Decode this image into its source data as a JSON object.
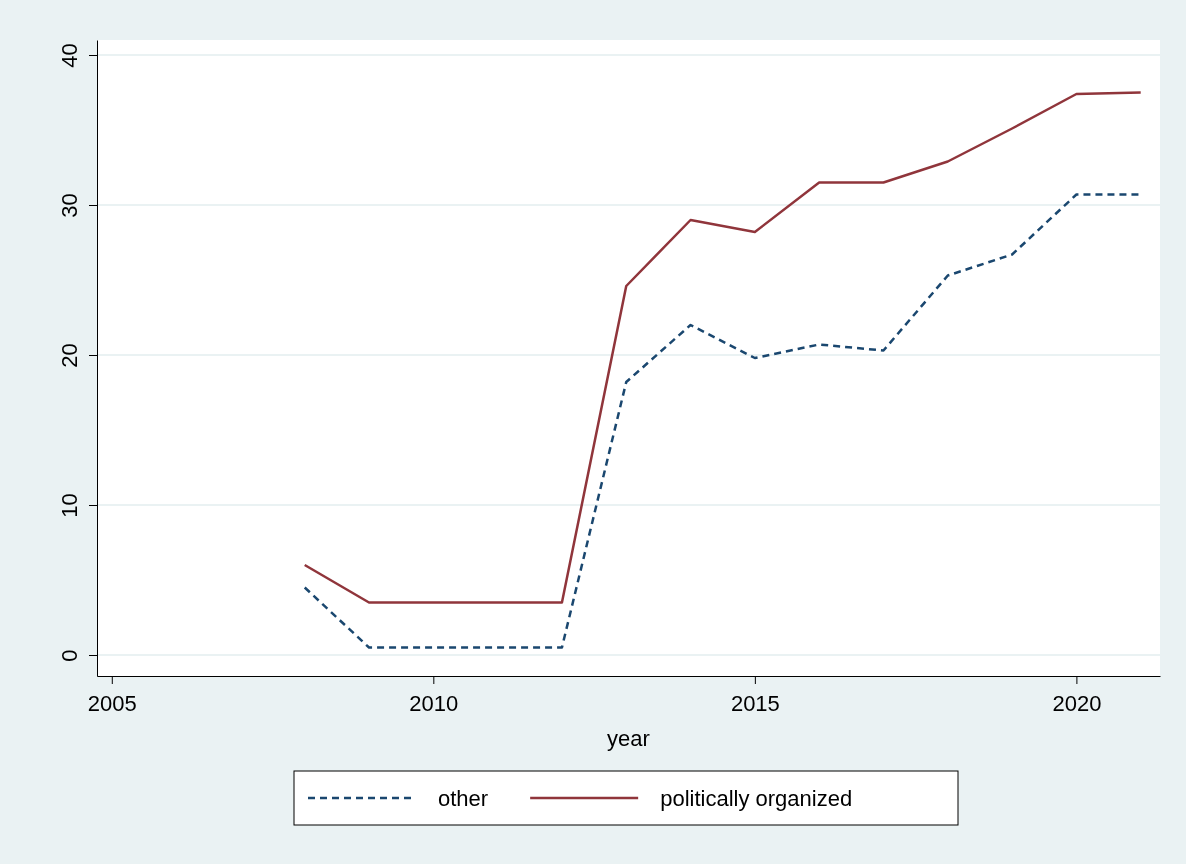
{
  "chart_data": {
    "type": "line",
    "xlabel": "year",
    "x": [
      2008,
      2009,
      2010,
      2011,
      2012,
      2013,
      2014,
      2015,
      2016,
      2017,
      2018,
      2019,
      2020,
      2021
    ],
    "series": [
      {
        "name": "other",
        "color": "#1a476f",
        "line_style": "dashed",
        "values": [
          4.5,
          0.5,
          0.5,
          0.5,
          0.5,
          18.2,
          22.0,
          19.8,
          20.7,
          20.3,
          25.3,
          26.7,
          30.7,
          30.7
        ]
      },
      {
        "name": "politically organized",
        "color": "#90353b",
        "line_style": "solid",
        "values": [
          6.0,
          3.5,
          3.5,
          3.5,
          3.5,
          24.6,
          29.0,
          28.2,
          31.5,
          31.5,
          32.9,
          35.1,
          37.4,
          37.5
        ]
      }
    ],
    "xlim": [
      2004.77,
      2021.3
    ],
    "xticks": [
      2005,
      2010,
      2015,
      2020
    ],
    "ylim": [
      -1.4,
      41
    ],
    "yticks": [
      0,
      10,
      20,
      30,
      40
    ],
    "grid": "y",
    "legend": "bottom",
    "marker": "none"
  }
}
